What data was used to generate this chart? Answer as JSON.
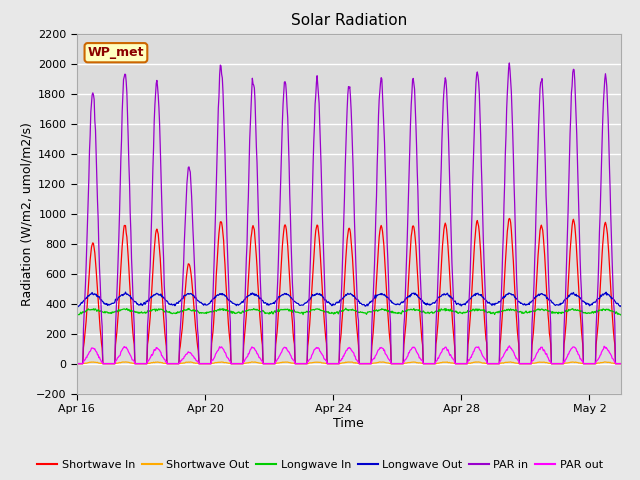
{
  "title": "Solar Radiation",
  "xlabel": "Time",
  "ylabel": "Radiation (W/m2, umol/m2/s)",
  "ylim": [
    -200,
    2200
  ],
  "yticks": [
    -200,
    0,
    200,
    400,
    600,
    800,
    1000,
    1200,
    1400,
    1600,
    1800,
    2000,
    2200
  ],
  "xtick_labels": [
    "Apr 16",
    "Apr 20",
    "Apr 24",
    "Apr 28",
    "May 2"
  ],
  "annotation_text": "WP_met",
  "annotation_bg": "#ffffc0",
  "annotation_border": "#cc6600",
  "series_colors": {
    "shortwave_in": "#ff0000",
    "shortwave_out": "#ffaa00",
    "longwave_in": "#00cc00",
    "longwave_out": "#0000cc",
    "par_in": "#9900cc",
    "par_out": "#ff00ff"
  },
  "fig_bg": "#e8e8e8",
  "plot_bg": "#dcdcdc",
  "grid_color": "#ffffff",
  "title_fontsize": 11,
  "label_fontsize": 9,
  "tick_fontsize": 8,
  "legend_fontsize": 8,
  "n_days": 17,
  "dp": 48
}
